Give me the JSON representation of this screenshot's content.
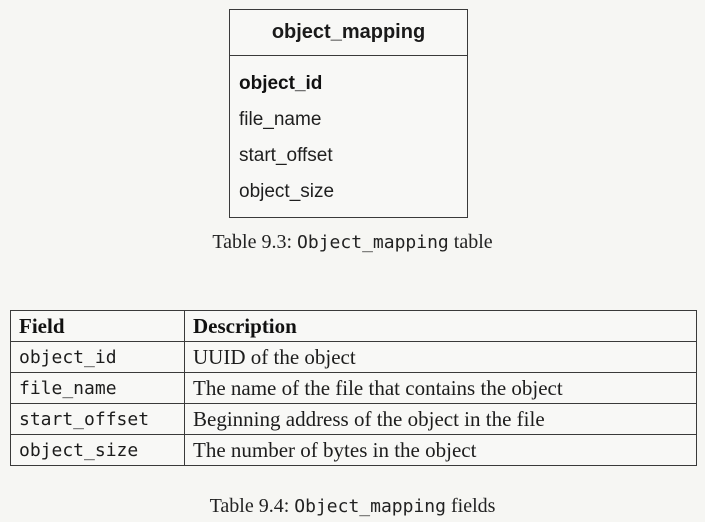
{
  "schema_table": {
    "title": "object_mapping",
    "fields": [
      "object_id",
      "file_name",
      "start_offset",
      "object_size"
    ]
  },
  "caption_1": {
    "prefix": "Table 9.3: ",
    "code": "Object_mapping",
    "suffix": " table"
  },
  "fields_table": {
    "headers": [
      "Field",
      "Description"
    ],
    "rows": [
      {
        "field": "object_id",
        "description": "UUID of the object"
      },
      {
        "field": "file_name",
        "description": "The name of the file that contains the object"
      },
      {
        "field": "start_offset",
        "description": "Beginning address of the object in the file"
      },
      {
        "field": "object_size",
        "description": "The number of bytes in the object"
      }
    ]
  },
  "caption_2": {
    "prefix": "Table 9.4: ",
    "code": "Object_mapping",
    "suffix": " fields"
  }
}
